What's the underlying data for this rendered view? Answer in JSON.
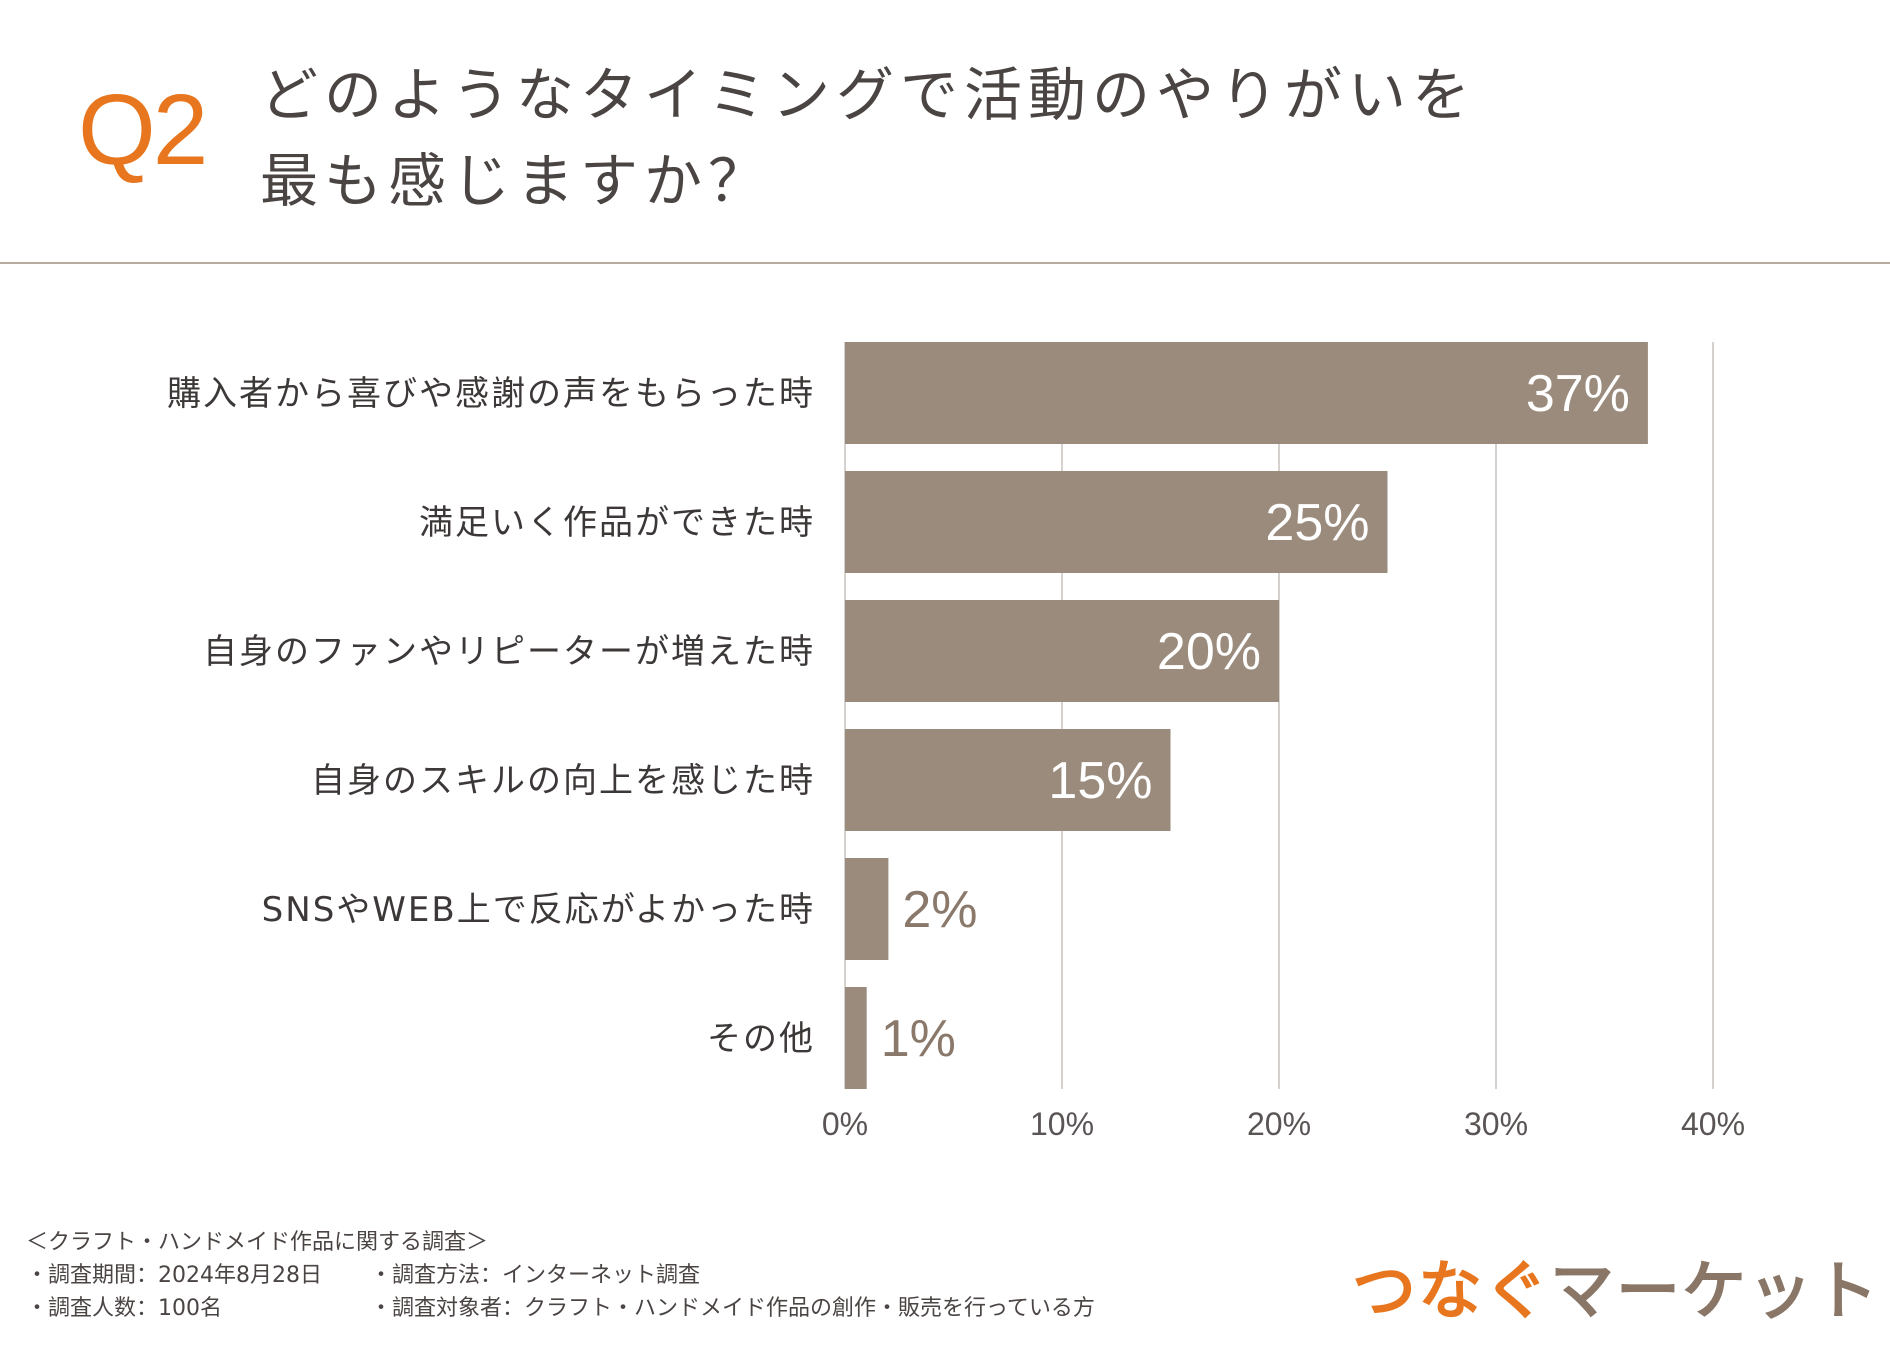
{
  "question_number": "Q2",
  "title": [
    "どのようなタイミングで活動のやりがいを",
    "最も感じますか？"
  ],
  "chart_data": {
    "type": "bar",
    "orientation": "horizontal",
    "categories": [
      "購入者から喜びや感謝の声をもらった時",
      "満足いく作品ができた時",
      "自身のファンやリピーターが増えた時",
      "自身のスキルの向上を感じた時",
      "SNSやWEB上で反応がよかった時",
      "その他"
    ],
    "values": [
      37,
      25,
      20,
      15,
      2,
      1
    ],
    "value_labels": [
      "37%",
      "25%",
      "20%",
      "15%",
      "2%",
      "1%"
    ],
    "xlim": [
      0,
      40
    ],
    "xticks": [
      "0%",
      "10%",
      "20%",
      "30%",
      "40%"
    ],
    "grid": "vertical",
    "bar_color": "#9a8b7c"
  },
  "footer": {
    "heading": "＜クラフト・ハンドメイド作品に関する調査＞",
    "period": "・調査期間：2024年8月28日",
    "method": "・調査方法：インターネット調査",
    "count": "・調査人数：100名",
    "target": "・調査対象者：クラフト・ハンドメイド作品の創作・販売を行っている方"
  },
  "logo": {
    "part1": "つなぐ",
    "part2": "マーケット"
  },
  "colors": {
    "accent": "#e7761e",
    "bar": "#9a8b7c",
    "logo_brown": "#897666"
  }
}
